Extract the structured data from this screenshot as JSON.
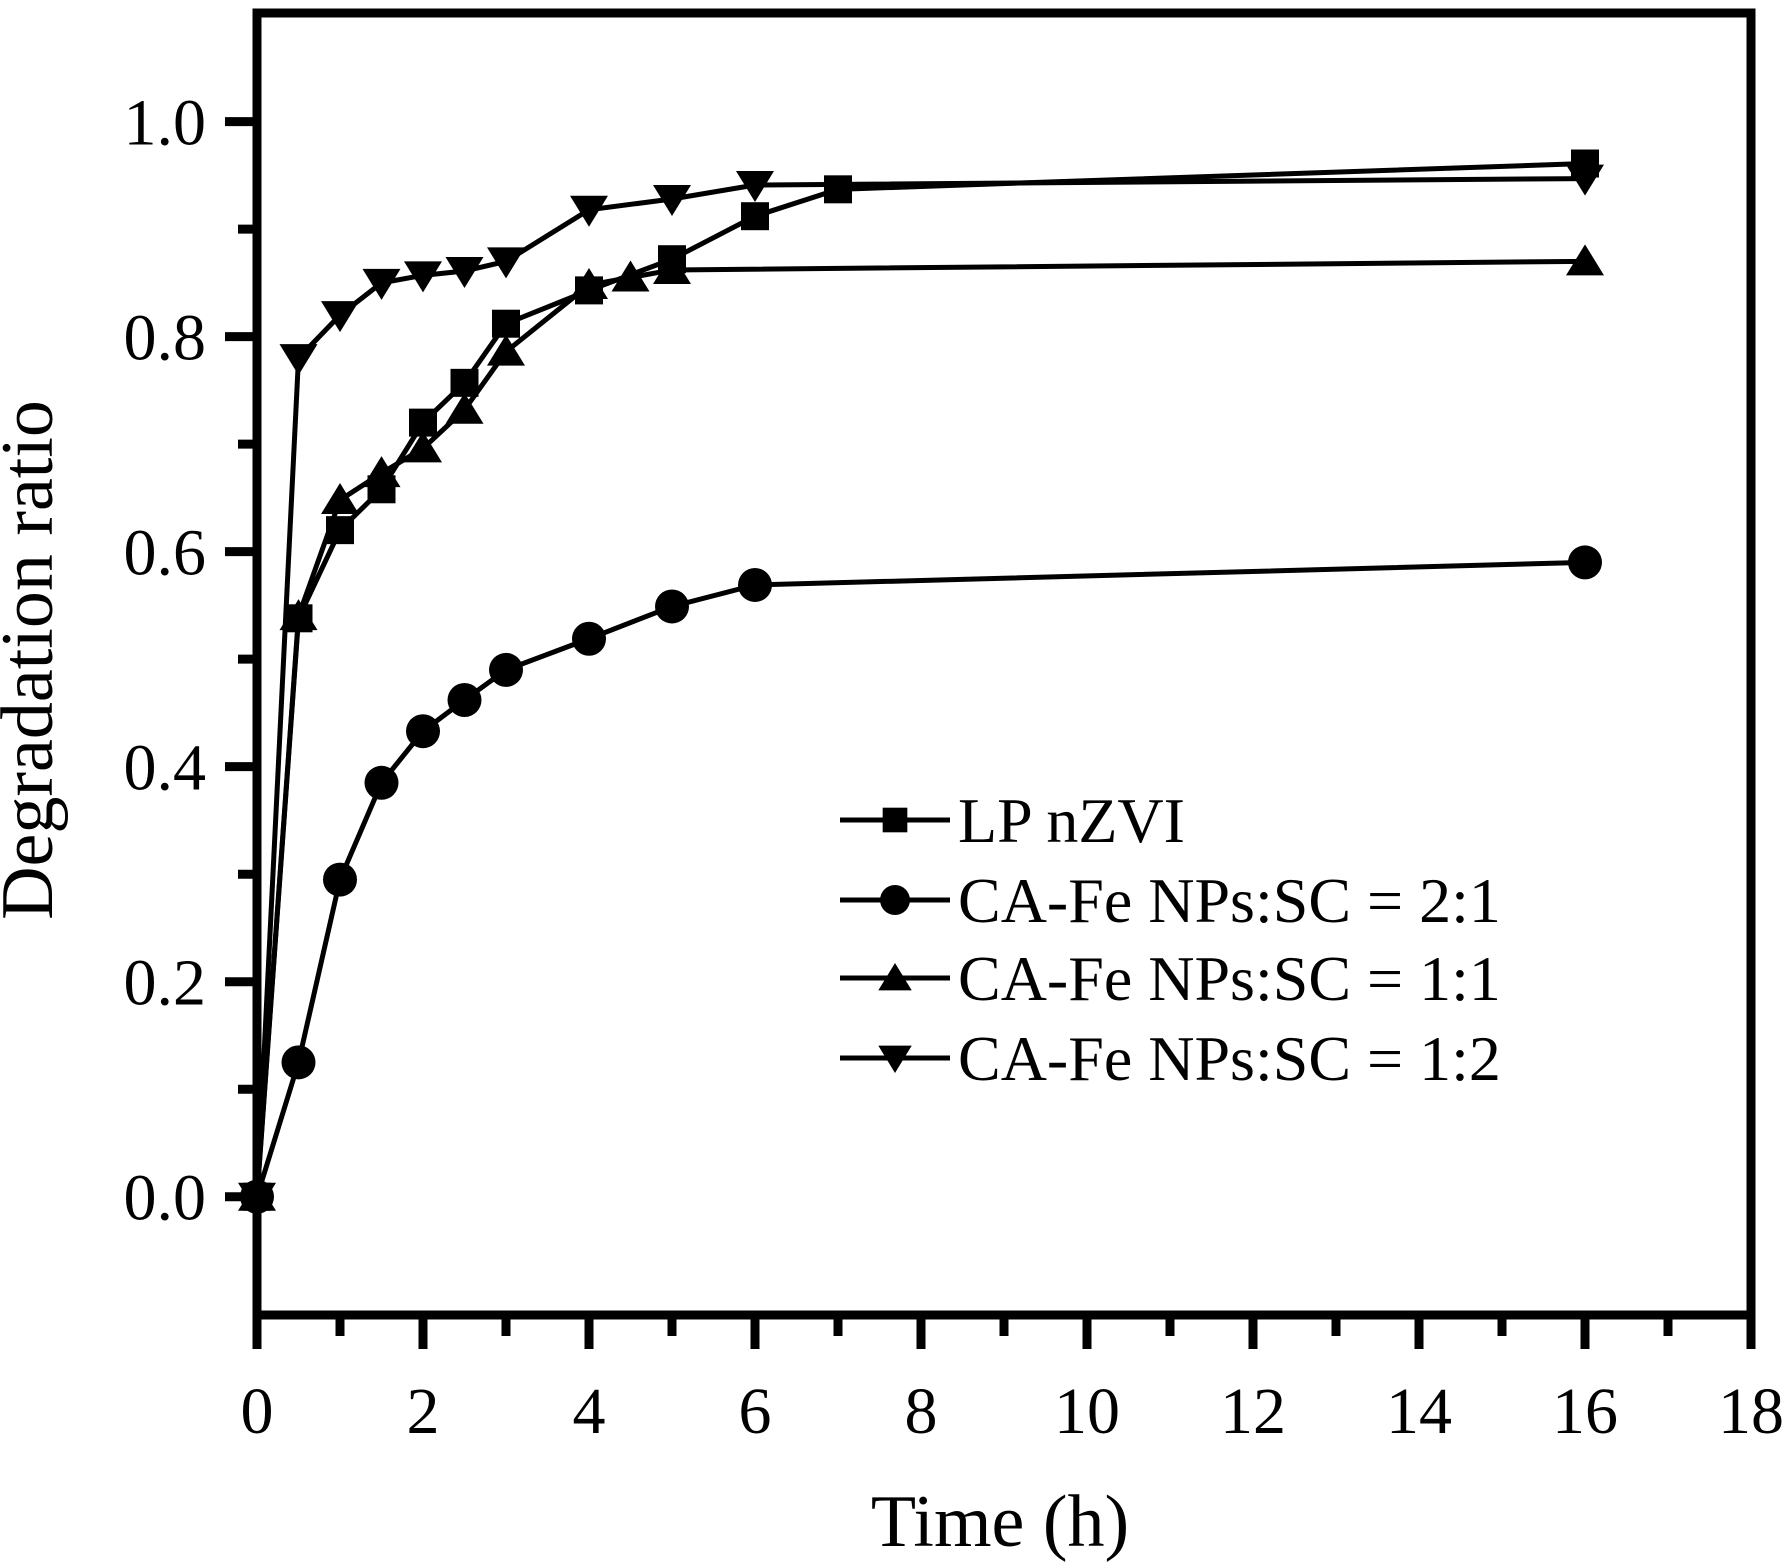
{
  "figure": {
    "background_color": "#ffffff",
    "ink_color": "#000000"
  },
  "axes": {
    "x": {
      "title": "Time (h)",
      "tick_values": [
        0,
        2,
        4,
        6,
        8,
        10,
        12,
        14,
        16,
        18
      ],
      "tick_labels": [
        "0",
        "2",
        "4",
        "6",
        "8",
        "10",
        "12",
        "14",
        "16",
        "18"
      ],
      "minor_tick_values": [
        1,
        3,
        5,
        7,
        9,
        11,
        13,
        15,
        17
      ]
    },
    "y": {
      "title": "Degradation ratio",
      "tick_values": [
        0.0,
        0.2,
        0.4,
        0.6,
        0.8,
        1.0
      ],
      "tick_labels": [
        "0.0",
        "0.2",
        "0.4",
        "0.6",
        "0.8",
        "1.0"
      ],
      "minor_tick_values": [
        0.1,
        0.3,
        0.5,
        0.7,
        0.9
      ]
    }
  },
  "chart_data": {
    "type": "line",
    "title": "",
    "xlabel": "Time (h)",
    "ylabel": "Degradation ratio",
    "xlim": [
      0,
      18
    ],
    "ylim": [
      -0.11,
      1.101
    ],
    "grid": false,
    "legend_position": "center-right",
    "series": [
      {
        "name": "LP nZVI",
        "marker": "square",
        "color": "#000000",
        "x": [
          0,
          0.5,
          1,
          1.5,
          2,
          2.5,
          3,
          4,
          5,
          6,
          7,
          16
        ],
        "y": [
          0.0,
          0.538,
          0.62,
          0.658,
          0.72,
          0.757,
          0.812,
          0.843,
          0.872,
          0.912,
          0.937,
          0.961
        ]
      },
      {
        "name": "CA-Fe NPs:SC = 2:1",
        "marker": "circle",
        "color": "#000000",
        "x": [
          0,
          0.5,
          1,
          1.5,
          2,
          2.5,
          3,
          4,
          5,
          6,
          16
        ],
        "y": [
          0.0,
          0.125,
          0.295,
          0.385,
          0.433,
          0.462,
          0.49,
          0.519,
          0.549,
          0.569,
          0.59
        ]
      },
      {
        "name": "CA-Fe NPs:SC = 1:1",
        "marker": "triangle-up",
        "color": "#000000",
        "x": [
          0,
          0.5,
          1,
          1.5,
          2,
          2.5,
          3,
          4,
          4.5,
          5,
          16
        ],
        "y": [
          0.0,
          0.54,
          0.648,
          0.673,
          0.696,
          0.732,
          0.786,
          0.848,
          0.855,
          0.862,
          0.87
        ]
      },
      {
        "name": "CA-Fe NPs:SC = 1:2",
        "marker": "triangle-down",
        "color": "#000000",
        "x": [
          0,
          0.5,
          1,
          1.5,
          2,
          2.5,
          3,
          4,
          5,
          6,
          16
        ],
        "y": [
          0.0,
          0.78,
          0.82,
          0.85,
          0.857,
          0.861,
          0.87,
          0.918,
          0.928,
          0.941,
          0.947
        ]
      }
    ]
  }
}
